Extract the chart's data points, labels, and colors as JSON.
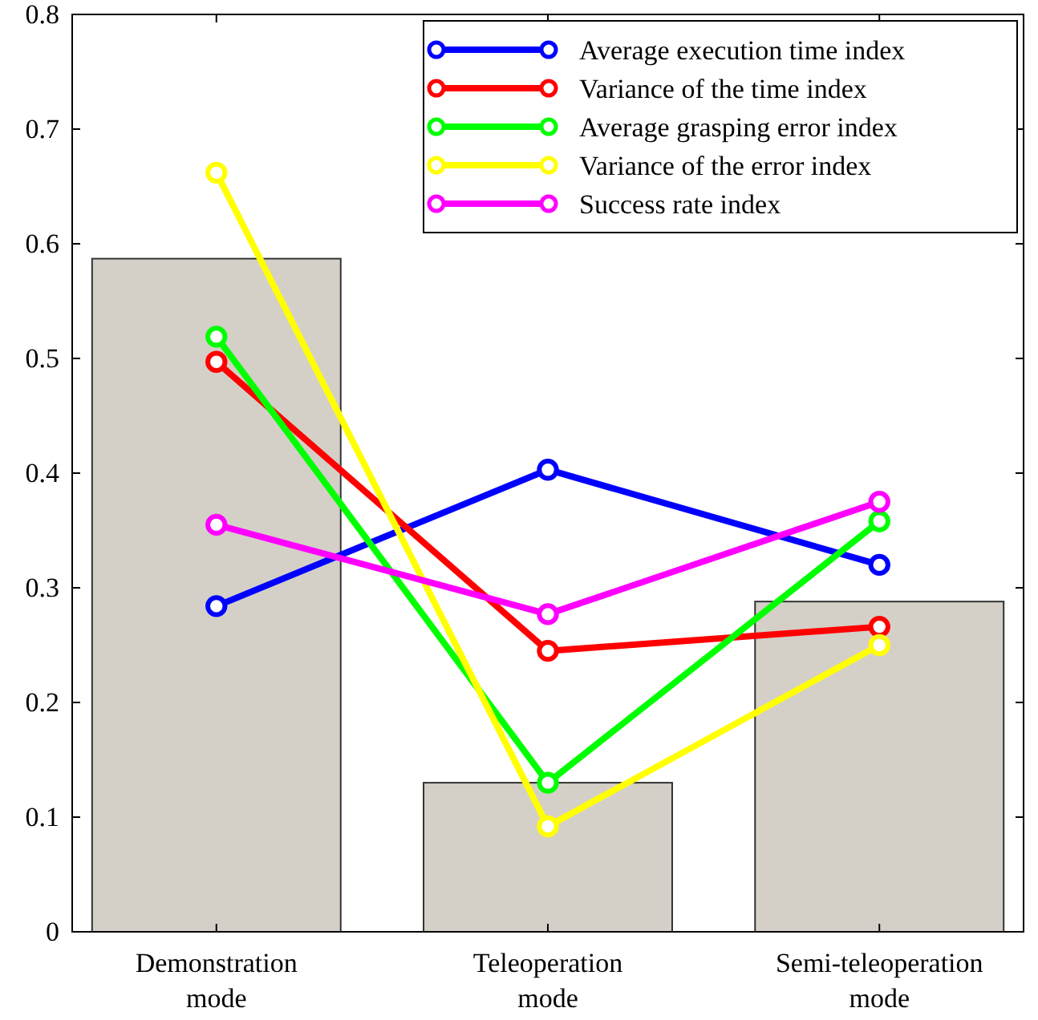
{
  "chart_data": {
    "type": "line",
    "categories": [
      "Demonstration mode",
      "Teleoperation mode",
      "Semi-teleoperation mode"
    ],
    "ylim": [
      0,
      0.8
    ],
    "yticks": [
      0,
      0.1,
      0.2,
      0.3,
      0.4,
      0.5,
      0.6,
      0.7,
      0.8
    ],
    "grid": false,
    "legend": "top right",
    "marker": "circle",
    "line_style": "solid",
    "series": [
      {
        "type": "bar",
        "color": "#d4d0c8",
        "values": [
          0.587,
          0.13,
          0.288
        ]
      },
      {
        "name": "Average execution time index",
        "color": "#0000ff",
        "values": [
          0.284,
          0.403,
          0.32
        ]
      },
      {
        "name": "Variance of the time index",
        "color": "#ff0000",
        "values": [
          0.497,
          0.245,
          0.266
        ]
      },
      {
        "name": "Average grasping error index",
        "color": "#00ff00",
        "values": [
          0.519,
          0.13,
          0.358
        ]
      },
      {
        "name": "Variance of the error index",
        "color": "#ffff00",
        "values": [
          0.662,
          0.092,
          0.25
        ]
      },
      {
        "name": "Success rate index",
        "color": "#ff00ff",
        "values": [
          0.355,
          0.277,
          0.375
        ]
      }
    ]
  }
}
